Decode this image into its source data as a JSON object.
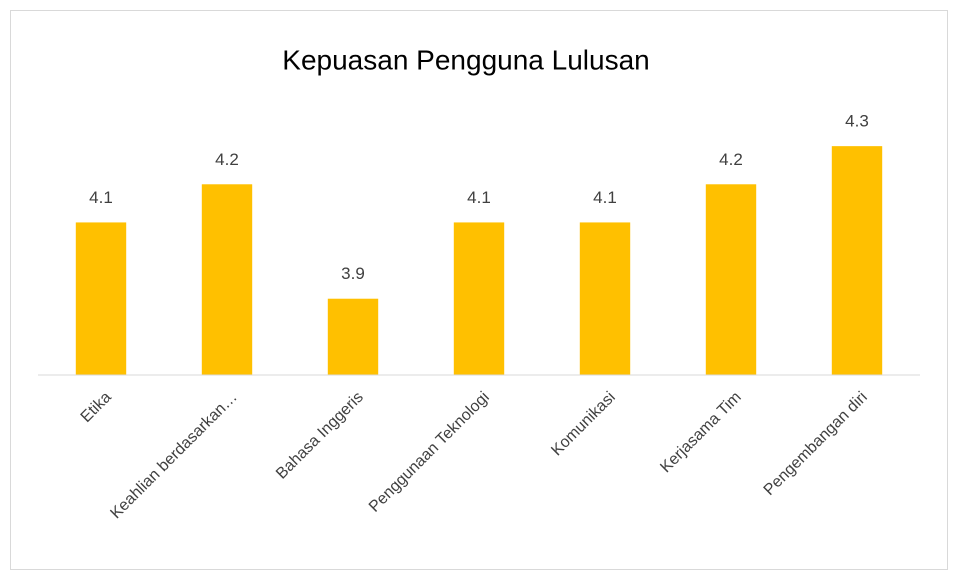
{
  "chart_data": {
    "type": "bar",
    "title": "Kepuasan Pengguna Lulusan",
    "categories": [
      "Etika",
      "Keahlian berdasarkan…",
      "Bahasa Inggeris",
      "Penggunaan Teknologi",
      "Komunikasi",
      "Kerjasama Tim",
      "Pengembangan diri"
    ],
    "values": [
      4.1,
      4.2,
      3.9,
      4.1,
      4.1,
      4.2,
      4.3
    ],
    "color": "#ffc000",
    "ylim": [
      3.7,
      4.4
    ]
  }
}
